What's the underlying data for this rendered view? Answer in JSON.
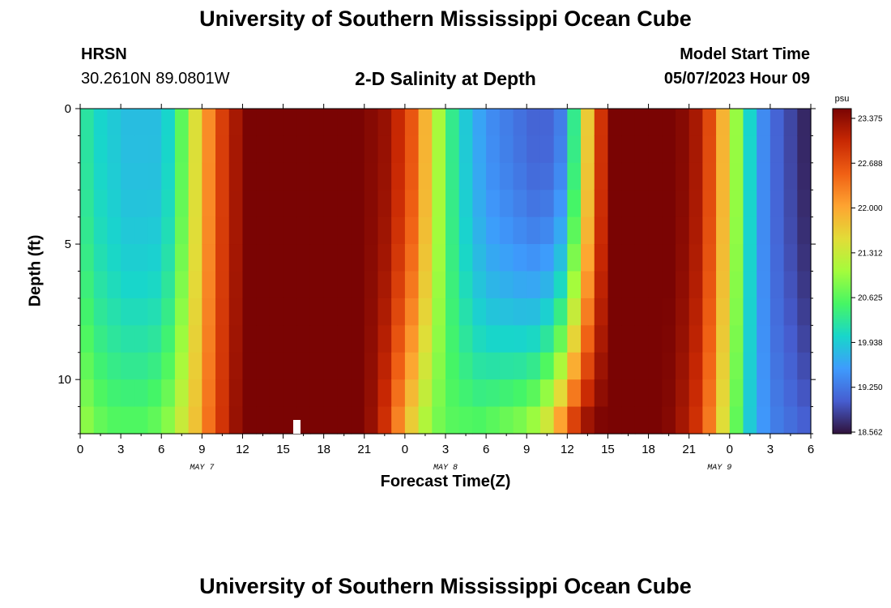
{
  "header": {
    "title_top": "University of Southern Mississippi Ocean Cube",
    "station": "HRSN",
    "coords": "30.2610N  89.0801W",
    "subtitle": "2-D Salinity at Depth",
    "model_label": "Model Start Time",
    "model_time": "05/07/2023 Hour 09",
    "title_bottom": "University of Southern Mississippi Ocean Cube"
  },
  "chart_data": {
    "type": "heatmap",
    "xlabel": "Forecast Time(Z)",
    "ylabel": "Depth (ft)",
    "x_ticks": [
      "0",
      "3",
      "6",
      "9",
      "12",
      "15",
      "18",
      "21",
      "0",
      "3",
      "6",
      "9",
      "12",
      "15",
      "18",
      "21",
      "0",
      "3",
      "6"
    ],
    "x_day_labels": [
      {
        "label": "MAY 7",
        "hour_index": 24
      },
      {
        "label": "MAY 8",
        "hour_index": 72
      },
      {
        "label": "MAY 9",
        "hour_index": 126
      }
    ],
    "x_range_hours": [
      0,
      54
    ],
    "y_ticks": [
      "0",
      "5",
      "10"
    ],
    "y_range": [
      0,
      12
    ],
    "y_inverted": true,
    "colorbar": {
      "unit": "psu",
      "min": 18.562,
      "max": 23.375,
      "ticks": [
        "23.375",
        "22.688",
        "22.000",
        "21.312",
        "20.625",
        "19.938",
        "19.250",
        "18.562"
      ],
      "colormap": "turbo"
    },
    "hourly_surface_salinity": [
      20.2,
      20.0,
      19.9,
      19.8,
      19.8,
      19.8,
      20.0,
      20.6,
      21.4,
      22.1,
      22.7,
      23.1,
      23.4,
      23.6,
      23.8,
      23.9,
      23.9,
      23.9,
      23.7,
      23.5,
      23.4,
      23.3,
      23.2,
      22.9,
      22.5,
      21.8,
      21.0,
      20.3,
      19.9,
      19.6,
      19.4,
      19.3,
      19.2,
      19.1,
      19.1,
      19.3,
      20.3,
      21.6,
      22.8,
      23.4,
      23.5,
      23.5,
      23.5,
      23.4,
      23.3,
      23.1,
      22.6,
      21.8,
      20.9,
      20.0,
      19.4,
      19.1,
      18.9,
      18.7,
      18.6
    ],
    "hourly_bottom_salinity": [
      20.9,
      20.7,
      20.6,
      20.6,
      20.6,
      20.7,
      20.9,
      21.3,
      21.7,
      22.3,
      22.8,
      23.2,
      23.4,
      23.6,
      23.8,
      23.9,
      23.9,
      23.9,
      23.7,
      23.5,
      23.4,
      23.2,
      22.8,
      22.1,
      21.5,
      21.0,
      20.7,
      20.6,
      20.6,
      20.6,
      20.7,
      20.8,
      20.9,
      21.1,
      21.5,
      22.2,
      22.9,
      23.3,
      23.4,
      23.4,
      23.4,
      23.4,
      23.4,
      23.3,
      23.1,
      22.8,
      22.2,
      21.4,
      20.6,
      19.9,
      19.5,
      19.3,
      19.2,
      19.1,
      19.1
    ]
  }
}
